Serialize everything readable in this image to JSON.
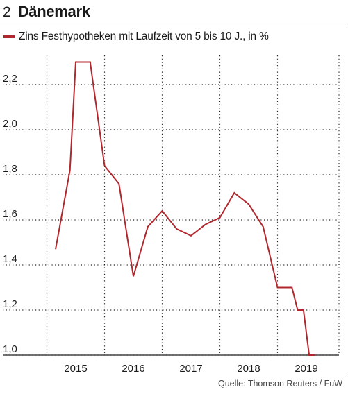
{
  "header": {
    "number": "2",
    "title": "Dänemark"
  },
  "legend": {
    "label": "Zins Festhypotheken mit Laufzeit von 5 bis 10 J., in %"
  },
  "source": "Quelle: Thomson Reuters / FuW",
  "colors": {
    "series": "#b0272d",
    "grid": "#222222"
  },
  "chart_data": {
    "type": "line",
    "title": "Dänemark",
    "xlabel": "",
    "ylabel": "",
    "ylim": [
      1.0,
      2.4
    ],
    "yticks": [
      1.0,
      1.2,
      1.4,
      1.6,
      1.8,
      2.0,
      2.2
    ],
    "ytick_labels": [
      "1,0",
      "1,2",
      "1,4",
      "1,6",
      "1,8",
      "2,0",
      "2,2"
    ],
    "xlim": [
      2014.5,
      2019.5
    ],
    "xticks": [
      2015,
      2016,
      2017,
      2018,
      2019
    ],
    "xtick_labels": [
      "2015",
      "2016",
      "2017",
      "2018",
      "2019"
    ],
    "grid": "vertical dotted",
    "legend_position": "top-left",
    "series": [
      {
        "name": "Zins Festhypotheken mit Laufzeit von 5 bis 10 J., in %",
        "x": [
          2014.65,
          2014.9,
          2015.0,
          2015.25,
          2015.5,
          2015.75,
          2016.0,
          2016.25,
          2016.5,
          2016.75,
          2017.0,
          2017.25,
          2017.5,
          2017.75,
          2018.0,
          2018.25,
          2018.5,
          2018.75,
          2018.85,
          2018.95,
          2019.05,
          2019.15
        ],
        "values": [
          1.47,
          1.82,
          2.3,
          2.3,
          1.84,
          1.76,
          1.35,
          1.57,
          1.64,
          1.56,
          1.53,
          1.58,
          1.61,
          1.72,
          1.67,
          1.57,
          1.3,
          1.3,
          1.2,
          1.2,
          1.0,
          1.0
        ]
      }
    ]
  }
}
